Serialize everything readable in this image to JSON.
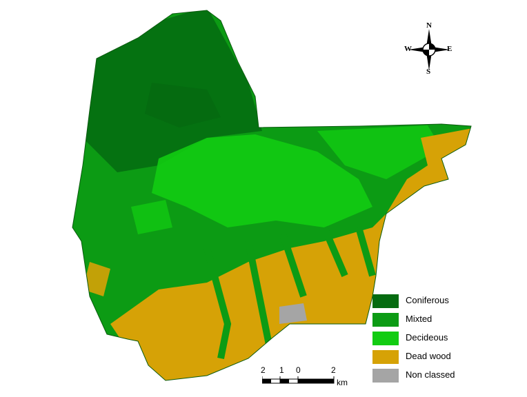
{
  "legend": {
    "items": [
      {
        "label": "Coniferous",
        "color": "#056b10"
      },
      {
        "label": "Mixted",
        "color": "#0c9b14"
      },
      {
        "label": "Decideous",
        "color": "#12cc12"
      },
      {
        "label": "Dead wood",
        "color": "#d6a206"
      },
      {
        "label": "Non classed",
        "color": "#a5a5a5"
      }
    ]
  },
  "scale_bar": {
    "ticks": [
      "2",
      "1",
      "0",
      "2"
    ],
    "unit": "km"
  },
  "compass": {
    "north": "N",
    "south": "S",
    "east": "E",
    "west": "W"
  },
  "colors": {
    "coniferous": "#056b10",
    "mixed": "#0c9b14",
    "deciduous": "#12cc12",
    "dead_wood": "#d6a206",
    "non_classed": "#a5a5a5"
  }
}
